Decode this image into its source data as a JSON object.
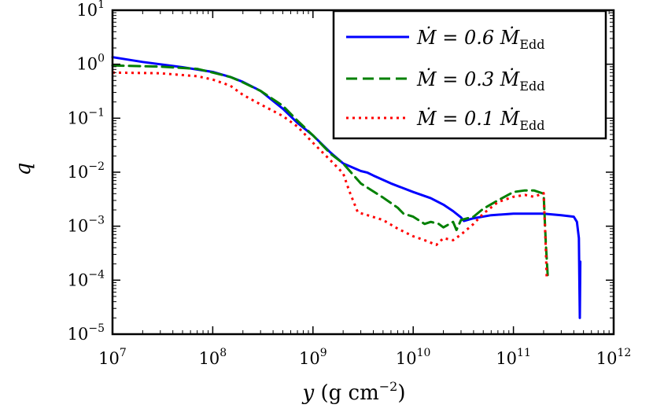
{
  "chart_data": {
    "type": "line",
    "xscale": "log",
    "yscale": "log",
    "xlim": [
      10000000.0,
      1000000000000.0
    ],
    "ylim": [
      1e-05,
      10
    ],
    "xlabel": {
      "var": "y",
      "text": " (g cm",
      "exp": "−2",
      "close": ")"
    },
    "ylabel": "q",
    "xticks": [
      {
        "value": 10000000.0,
        "base": "10",
        "exp": "7"
      },
      {
        "value": 100000000.0,
        "base": "10",
        "exp": "8"
      },
      {
        "value": 1000000000.0,
        "base": "10",
        "exp": "9"
      },
      {
        "value": 10000000000.0,
        "base": "10",
        "exp": "10"
      },
      {
        "value": 100000000000.0,
        "base": "10",
        "exp": "11"
      },
      {
        "value": 1000000000000.0,
        "base": "10",
        "exp": "12"
      }
    ],
    "yticks": [
      {
        "value": 1e-05,
        "base": "10",
        "exp": "−5"
      },
      {
        "value": 0.0001,
        "base": "10",
        "exp": "−4"
      },
      {
        "value": 0.001,
        "base": "10",
        "exp": "−3"
      },
      {
        "value": 0.01,
        "base": "10",
        "exp": "−2"
      },
      {
        "value": 0.1,
        "base": "10",
        "exp": "−1"
      },
      {
        "value": 1,
        "base": "10",
        "exp": "0"
      },
      {
        "value": 10,
        "base": "10",
        "exp": "1"
      }
    ],
    "legend_position": "top-right",
    "series": [
      {
        "name": "Ṁ = 0.6 Ṁ_Edd",
        "label_main": "Ṁ = 0.6 Ṁ",
        "label_sub": "Edd",
        "color": "#0000ff",
        "style": "solid",
        "x": [
          10000000.0,
          20000000.0,
          50000000.0,
          100000000.0,
          150000000.0,
          200000000.0,
          300000000.0,
          500000000.0,
          700000000.0,
          1000000000.0,
          1500000000.0,
          2000000000.0,
          3000000000.0,
          3500000000.0,
          4000000000.0,
          6000000000.0,
          10000000000.0,
          15000000000.0,
          20000000000.0,
          25000000000.0,
          30000000000.0,
          32000000000.0,
          40000000000.0,
          60000000000.0,
          100000000000.0,
          150000000000.0,
          200000000000.0,
          300000000000.0,
          400000000000.0,
          430000000000.0,
          450000000000.0,
          455000000000.0,
          460000000000.0,
          465000000000.0
        ],
        "values": [
          1.35,
          1.1,
          0.88,
          0.72,
          0.58,
          0.47,
          0.32,
          0.15,
          0.082,
          0.048,
          0.023,
          0.0145,
          0.0105,
          0.0098,
          0.0087,
          0.0062,
          0.0043,
          0.0033,
          0.0025,
          0.0019,
          0.00145,
          0.00125,
          0.0014,
          0.0016,
          0.0017,
          0.0017,
          0.0017,
          0.0016,
          0.0015,
          0.0012,
          0.0006,
          0.0001,
          2e-05,
          0.00022
        ]
      },
      {
        "name": "Ṁ = 0.3 Ṁ_Edd",
        "label_main": "Ṁ = 0.3 Ṁ",
        "label_sub": "Edd",
        "color": "#008000",
        "style": "dashed",
        "x": [
          10000000.0,
          30000000.0,
          70000000.0,
          100000000.0,
          150000000.0,
          200000000.0,
          300000000.0,
          500000000.0,
          700000000.0,
          1000000000.0,
          1500000000.0,
          2000000000.0,
          3000000000.0,
          5000000000.0,
          7000000000.0,
          8000000000.0,
          10000000000.0,
          13000000000.0,
          15000000000.0,
          18000000000.0,
          20000000000.0,
          25000000000.0,
          27000000000.0,
          30000000000.0,
          40000000000.0,
          50000000000.0,
          70000000000.0,
          100000000000.0,
          130000000000.0,
          160000000000.0,
          200000000000.0,
          210000000000.0,
          220000000000.0
        ],
        "values": [
          0.95,
          0.9,
          0.82,
          0.7,
          0.58,
          0.46,
          0.32,
          0.17,
          0.09,
          0.048,
          0.022,
          0.0145,
          0.0062,
          0.0034,
          0.0022,
          0.0017,
          0.0015,
          0.0011,
          0.0012,
          0.0011,
          0.00095,
          0.0012,
          0.00085,
          0.0013,
          0.0015,
          0.0021,
          0.003,
          0.0043,
          0.0046,
          0.0046,
          0.004,
          0.0005,
          0.00012
        ]
      },
      {
        "name": "Ṁ = 0.1 Ṁ_Edd",
        "label_main": "Ṁ = 0.1 Ṁ",
        "label_sub": "Edd",
        "color": "#ff0000",
        "style": "dotted",
        "x": [
          10000000.0,
          30000000.0,
          70000000.0,
          100000000.0,
          150000000.0,
          200000000.0,
          300000000.0,
          500000000.0,
          700000000.0,
          1000000000.0,
          1500000000.0,
          2000000000.0,
          2300000000.0,
          2800000000.0,
          3500000000.0,
          5000000000.0,
          7000000000.0,
          10000000000.0,
          13000000000.0,
          17000000000.0,
          20000000000.0,
          25000000000.0,
          30000000000.0,
          40000000000.0,
          50000000000.0,
          70000000000.0,
          100000000000.0,
          130000000000.0,
          160000000000.0,
          200000000000.0,
          210000000000.0,
          215000000000.0
        ],
        "values": [
          0.7,
          0.68,
          0.6,
          0.52,
          0.4,
          0.27,
          0.18,
          0.11,
          0.07,
          0.035,
          0.0165,
          0.0095,
          0.0045,
          0.0018,
          0.0016,
          0.0013,
          0.0009,
          0.00065,
          0.00055,
          0.00045,
          0.0006,
          0.00055,
          0.0007,
          0.0011,
          0.0017,
          0.0028,
          0.0035,
          0.0038,
          0.0035,
          0.0041,
          0.0004,
          0.0001
        ]
      }
    ]
  }
}
